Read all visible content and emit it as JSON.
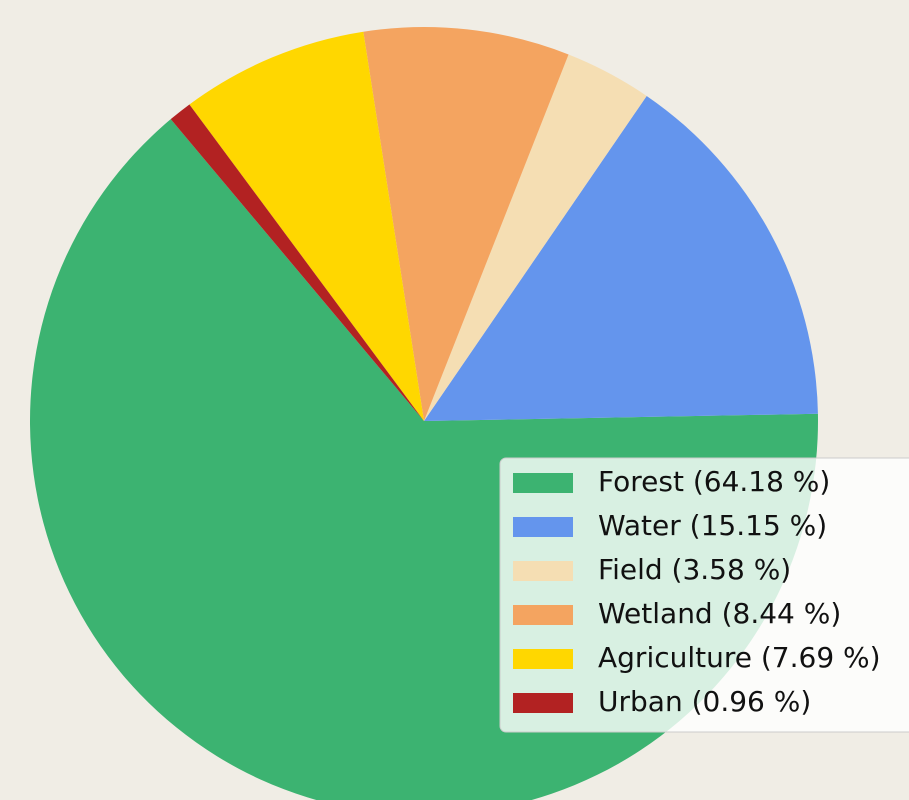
{
  "chart_data": {
    "type": "pie",
    "labels": [
      "Forest (64.18 %)",
      "Water (15.15 %)",
      "Field (3.58 %)",
      "Wetland (8.44 %)",
      "Agriculture (7.69 %)",
      "Urban (0.96 %)"
    ],
    "values": [
      64.18,
      15.15,
      3.58,
      8.44,
      7.69,
      0.96
    ],
    "colors": [
      "#3cb371",
      "#6495ed",
      "#f5deb3",
      "#f4a460",
      "#ffd700",
      "#b22222"
    ],
    "legend": "lower right"
  }
}
